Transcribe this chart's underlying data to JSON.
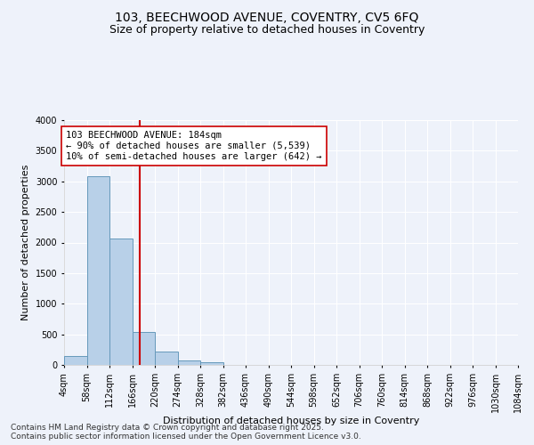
{
  "title_line1": "103, BEECHWOOD AVENUE, COVENTRY, CV5 6FQ",
  "title_line2": "Size of property relative to detached houses in Coventry",
  "xlabel": "Distribution of detached houses by size in Coventry",
  "ylabel": "Number of detached properties",
  "background_color": "#eef2fa",
  "bar_color": "#b8d0e8",
  "bar_edge_color": "#6699bb",
  "bins": [
    4,
    58,
    112,
    166,
    220,
    274,
    328,
    382,
    436,
    490,
    544,
    598,
    652,
    706,
    760,
    814,
    868,
    922,
    976,
    1030,
    1084
  ],
  "bin_labels": [
    "4sqm",
    "58sqm",
    "112sqm",
    "166sqm",
    "220sqm",
    "274sqm",
    "328sqm",
    "382sqm",
    "436sqm",
    "490sqm",
    "544sqm",
    "598sqm",
    "652sqm",
    "706sqm",
    "760sqm",
    "814sqm",
    "868sqm",
    "922sqm",
    "976sqm",
    "1030sqm",
    "1084sqm"
  ],
  "values": [
    150,
    3080,
    2070,
    540,
    220,
    80,
    50,
    0,
    0,
    0,
    0,
    0,
    0,
    0,
    0,
    0,
    0,
    0,
    0,
    0
  ],
  "property_size": 184,
  "red_line_color": "#cc0000",
  "annotation_line1": "103 BEECHWOOD AVENUE: 184sqm",
  "annotation_line2": "← 90% of detached houses are smaller (5,539)",
  "annotation_line3": "10% of semi-detached houses are larger (642) →",
  "annotation_box_color": "#ffffff",
  "annotation_box_edge_color": "#cc0000",
  "ylim": [
    0,
    4000
  ],
  "yticks": [
    0,
    500,
    1000,
    1500,
    2000,
    2500,
    3000,
    3500,
    4000
  ],
  "footer_text": "Contains HM Land Registry data © Crown copyright and database right 2025.\nContains public sector information licensed under the Open Government Licence v3.0.",
  "title_fontsize": 10,
  "subtitle_fontsize": 9,
  "axis_label_fontsize": 8,
  "tick_fontsize": 7,
  "annotation_fontsize": 7.5,
  "footer_fontsize": 6.5
}
